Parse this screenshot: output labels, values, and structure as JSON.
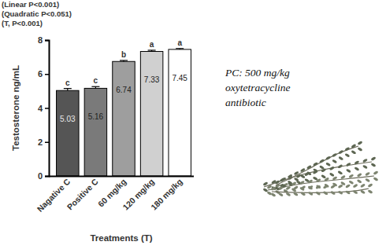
{
  "chart_data": {
    "type": "bar",
    "categories": [
      "Nagative C",
      "Positive C",
      "60 mg/kg",
      "120 mg/kg",
      "180 mg/kg"
    ],
    "values": [
      5.03,
      5.16,
      6.74,
      7.33,
      7.45
    ],
    "errors": [
      0.12,
      0.1,
      0.06,
      0.07,
      0.05
    ],
    "colors": [
      "#555555",
      "#7a7a7a",
      "#9e9e9e",
      "#d0d0d0",
      "#ffffff"
    ],
    "significance_letters": [
      "c",
      "c",
      "b",
      "a",
      "a"
    ],
    "data_labels": true,
    "ylim": [
      0,
      8
    ],
    "yticks": [
      0,
      2,
      4,
      6,
      8
    ],
    "y_label": "Testosterone ng/mL",
    "x_label": "Treatments (T)",
    "annotations": [
      "(Linear P<0.001)",
      "(Quadratic P<0.051)",
      "(T, P<0.001)"
    ],
    "note": [
      "PC: 500 mg/kg",
      "oxytetracycline",
      "antibiotic"
    ]
  }
}
